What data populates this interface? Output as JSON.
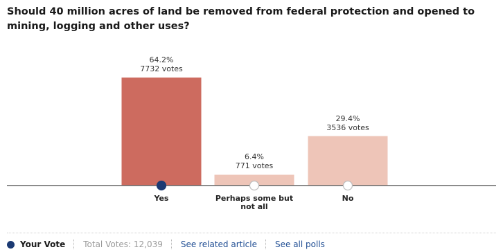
{
  "question": "Should 40 million acres of land be removed from federal protection and opened to mining, logging and other uses?",
  "chart_data": {
    "type": "bar",
    "categories": [
      "Yes",
      "Perhaps some but not all",
      "No"
    ],
    "category_lines": [
      [
        "Yes"
      ],
      [
        "Perhaps some but",
        "not all"
      ],
      [
        "No"
      ]
    ],
    "values": [
      64.2,
      6.4,
      29.4
    ],
    "percent_labels": [
      "64.2%",
      "6.4%",
      "29.4%"
    ],
    "vote_labels": [
      "7732 votes",
      "771 votes",
      "3536 votes"
    ],
    "votes": [
      7732,
      771,
      3536
    ],
    "selected_index": 0,
    "colors": [
      "#cd6b5f",
      "#eec5b8",
      "#eec5b8"
    ],
    "ylim": [
      0,
      64.2
    ]
  },
  "footer": {
    "your_vote_label": "Your Vote",
    "total_votes_label": "Total Votes: 12,039",
    "related_link": "See related article",
    "all_polls_link": "See all polls"
  },
  "colors": {
    "selected_marker": "#1c3a73",
    "link": "#1f4d93",
    "baseline": "#666666"
  }
}
